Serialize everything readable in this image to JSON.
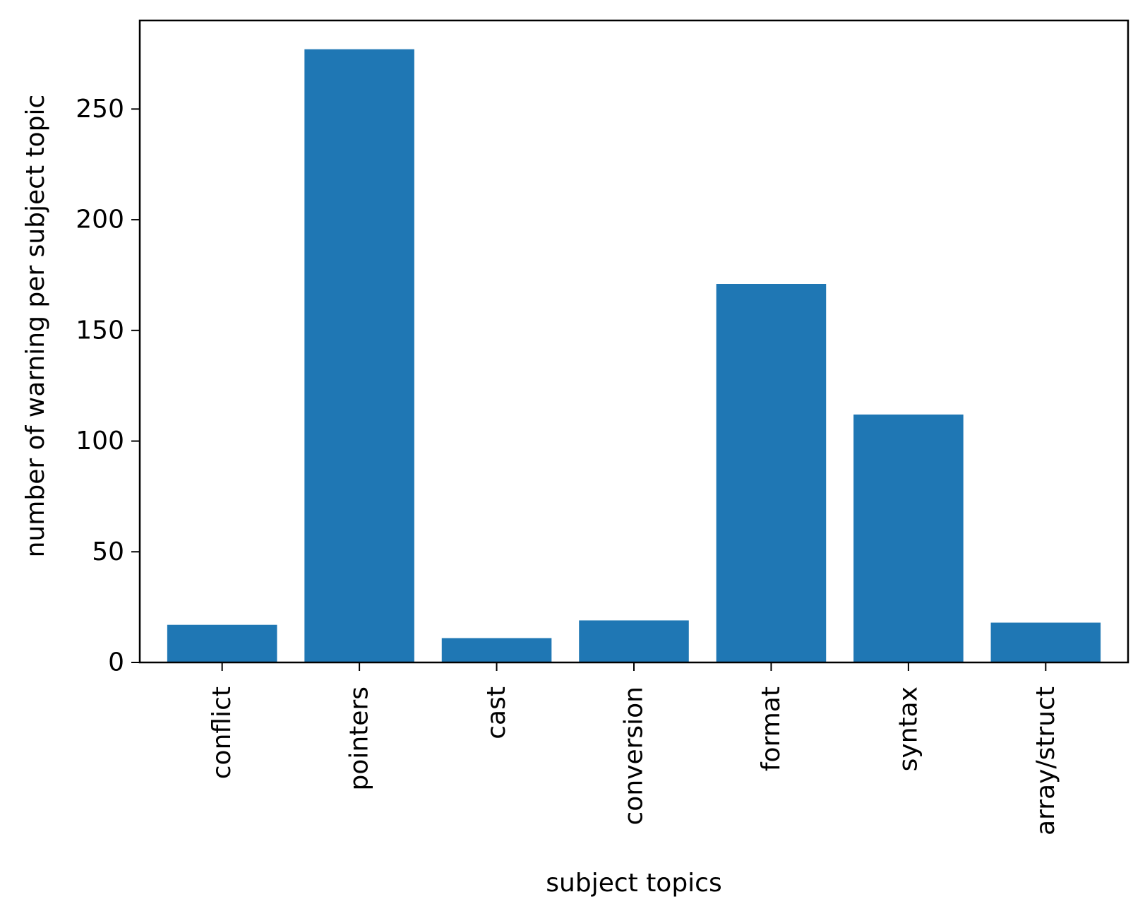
{
  "chart_data": {
    "type": "bar",
    "title": "",
    "xlabel": "subject topics",
    "ylabel": "number of warning per subject topic",
    "categories": [
      "conflict",
      "pointers",
      "cast",
      "conversion",
      "format",
      "syntax",
      "array/struct"
    ],
    "values": [
      17,
      277,
      11,
      19,
      171,
      112,
      18
    ],
    "ylim": [
      0,
      290
    ],
    "yticks": [
      0,
      50,
      100,
      150,
      200,
      250
    ],
    "bar_color": "#1f77b4",
    "grid": false,
    "legend": "none"
  }
}
